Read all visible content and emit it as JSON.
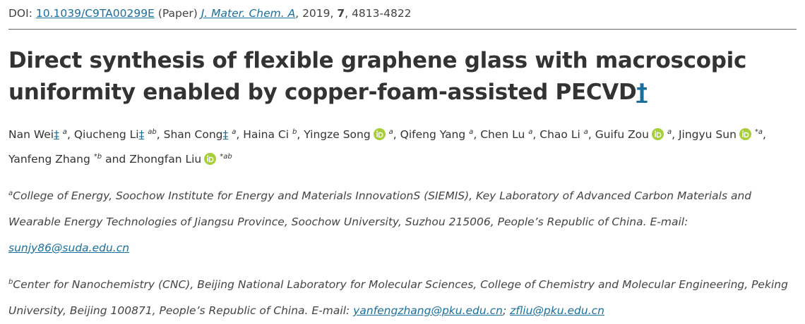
{
  "doi_line": {
    "label": "DOI:",
    "doi": "10.1039/C9TA00299E",
    "article_type": "(Paper)",
    "journal": "J. Mater. Chem. A",
    "separator": ",",
    "year": "2019",
    "volume": "7",
    "pages": "4813-4822"
  },
  "title": "Direct synthesis of flexible graphene glass with macroscopic uniformity enabled by copper-foam-assisted PECVD",
  "title_note": "†",
  "author_separator": ",",
  "conjunction": "and",
  "authors": [
    {
      "name": "Nan Wei",
      "mark": "‡",
      "orcid": false,
      "sup": "a"
    },
    {
      "name": "Qiucheng Li",
      "mark": "‡",
      "orcid": false,
      "sup": "ab"
    },
    {
      "name": "Shan Cong",
      "mark": "‡",
      "orcid": false,
      "sup": "a"
    },
    {
      "name": "Haina Ci",
      "mark": "",
      "orcid": false,
      "sup": "b"
    },
    {
      "name": "Yingze Song",
      "mark": "",
      "orcid": true,
      "sup": "a"
    },
    {
      "name": "Qifeng Yang",
      "mark": "",
      "orcid": false,
      "sup": "a"
    },
    {
      "name": "Chen Lu",
      "mark": "",
      "orcid": false,
      "sup": "a"
    },
    {
      "name": "Chao Li",
      "mark": "",
      "orcid": false,
      "sup": "a"
    },
    {
      "name": "Guifu Zou",
      "mark": "",
      "orcid": true,
      "sup": "a"
    },
    {
      "name": "Jingyu Sun",
      "mark": "",
      "orcid": true,
      "sup": "*a"
    },
    {
      "name": "Yanfeng Zhang",
      "mark": "",
      "orcid": false,
      "sup": "*b"
    },
    {
      "name": "Zhongfan Liu",
      "mark": "",
      "orcid": true,
      "sup": "*ab"
    }
  ],
  "email_label": "E-mail:",
  "email_separator": ";",
  "affiliations": [
    {
      "label": "a",
      "text": "College of Energy, Soochow Institute for Energy and Materials InnovationS (SIEMIS), Key Laboratory of Advanced Carbon Materials and Wearable Energy Technologies of Jiangsu Province, Soochow University, Suzhou 215006, People’s Republic of China.",
      "emails": [
        "sunjy86@suda.edu.cn"
      ]
    },
    {
      "label": "b",
      "text": "Center for Nanochemistry (CNC), Beijing National Laboratory for Molecular Sciences, College of Chemistry and Molecular Engineering, Peking University, Beijing 100871, People’s Republic of China.",
      "emails": [
        "yanfengzhang@pku.edu.cn",
        "zfliu@pku.edu.cn"
      ]
    }
  ]
}
